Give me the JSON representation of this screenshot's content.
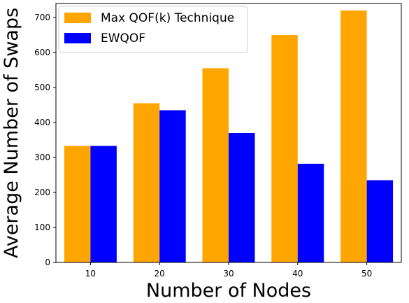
{
  "chart_data": {
    "type": "bar",
    "categories": [
      "10",
      "20",
      "30",
      "40",
      "50"
    ],
    "series": [
      {
        "name": "Max QOF(k) Technique",
        "color": "#FFA500",
        "values": [
          333,
          455,
          555,
          650,
          720
        ]
      },
      {
        "name": "EWQOF",
        "color": "#0000FF",
        "values": [
          333,
          435,
          370,
          282,
          235
        ]
      }
    ],
    "title": "",
    "xlabel": "Number of Nodes",
    "ylabel": "Average Number of Swaps",
    "ylim": [
      0,
      740
    ],
    "yticks": [
      0,
      100,
      200,
      300,
      400,
      500,
      600,
      700
    ],
    "grid": false,
    "legend_position": "top-left"
  }
}
